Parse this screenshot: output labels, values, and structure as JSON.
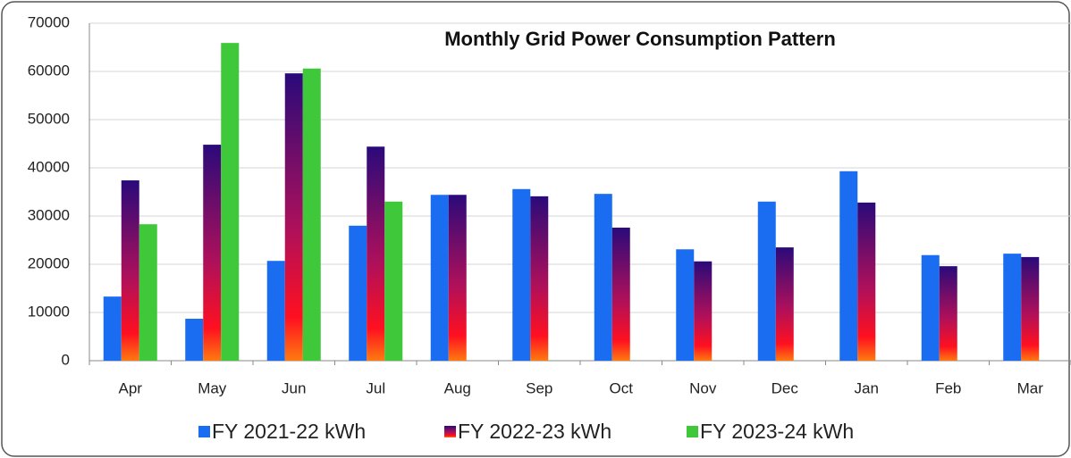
{
  "chart_data": {
    "type": "bar",
    "title": "Monthly Grid Power Consumption Pattern",
    "categories": [
      "Apr",
      "May",
      "Jun",
      "Jul",
      "Aug",
      "Sep",
      "Oct",
      "Nov",
      "Dec",
      "Jan",
      "Feb",
      "Mar"
    ],
    "series": [
      {
        "name": "FY 2021-22 kWh",
        "color": "#1a6cf0",
        "values": [
          13300,
          8700,
          20700,
          28000,
          34400,
          35600,
          34600,
          23100,
          33000,
          39300,
          21900,
          22200
        ]
      },
      {
        "name": "FY 2022-23 kWh",
        "color": "#2a0a7a",
        "values": [
          37400,
          44800,
          59600,
          44400,
          34400,
          34100,
          27600,
          20600,
          23500,
          32800,
          19600,
          21500
        ]
      },
      {
        "name": "FY 2023-24 kWh",
        "color": "#3ec83a",
        "values": [
          28300,
          65900,
          60600,
          33000,
          null,
          null,
          null,
          null,
          null,
          null,
          null,
          null
        ]
      }
    ],
    "ylim": [
      0,
      70000
    ],
    "yticks": [
      0,
      10000,
      20000,
      30000,
      40000,
      50000,
      60000,
      70000
    ],
    "grid": true
  }
}
